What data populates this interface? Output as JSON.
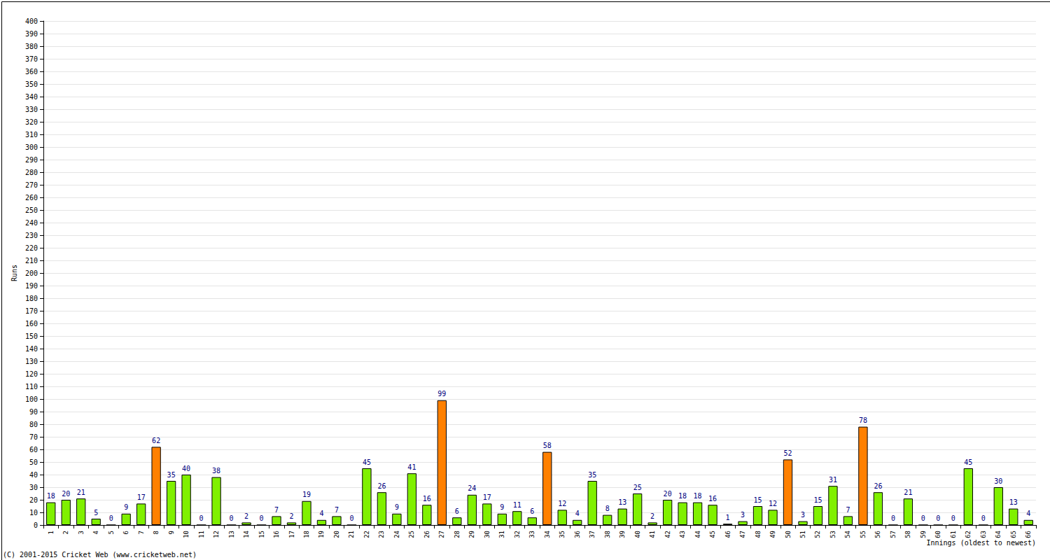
{
  "chart_data": {
    "type": "bar",
    "x_label": "Innings (oldest to newest)",
    "y_label": "Runs",
    "annotations": [
      "(C) 2001-2015 Cricket Web (www.cricketweb.net)"
    ],
    "categories": [
      "1",
      "2",
      "3",
      "4",
      "5",
      "6",
      "7",
      "8",
      "9",
      "10",
      "11",
      "12",
      "13",
      "14",
      "15",
      "16",
      "17",
      "18",
      "19",
      "20",
      "21",
      "22",
      "23",
      "24",
      "25",
      "26",
      "27",
      "28",
      "29",
      "30",
      "31",
      "32",
      "33",
      "34",
      "35",
      "36",
      "37",
      "38",
      "39",
      "40",
      "41",
      "42",
      "43",
      "44",
      "45",
      "46",
      "47",
      "48",
      "49",
      "50",
      "51",
      "52",
      "53",
      "54",
      "55",
      "56",
      "57",
      "58",
      "59",
      "60",
      "61",
      "62",
      "63",
      "64",
      "65",
      "66"
    ],
    "values": [
      18,
      20,
      21,
      5,
      0,
      9,
      17,
      62,
      35,
      40,
      0,
      38,
      0,
      2,
      0,
      7,
      2,
      19,
      4,
      7,
      0,
      45,
      26,
      9,
      41,
      16,
      99,
      6,
      24,
      17,
      9,
      11,
      6,
      58,
      12,
      4,
      35,
      8,
      13,
      25,
      2,
      20,
      18,
      18,
      16,
      1,
      3,
      15,
      12,
      52,
      3,
      15,
      31,
      7,
      78,
      26,
      0,
      21,
      0,
      0,
      0,
      45,
      0,
      30,
      13,
      4
    ],
    "colors": [
      "#80f000",
      "#80f000",
      "#80f000",
      "#80f000",
      "#80f000",
      "#80f000",
      "#80f000",
      "#ff8000",
      "#80f000",
      "#80f000",
      "#80f000",
      "#80f000",
      "#80f000",
      "#80f000",
      "#80f000",
      "#80f000",
      "#80f000",
      "#80f000",
      "#80f000",
      "#80f000",
      "#80f000",
      "#80f000",
      "#80f000",
      "#80f000",
      "#80f000",
      "#80f000",
      "#ff8000",
      "#80f000",
      "#80f000",
      "#80f000",
      "#80f000",
      "#80f000",
      "#80f000",
      "#ff8000",
      "#80f000",
      "#80f000",
      "#80f000",
      "#80f000",
      "#80f000",
      "#80f000",
      "#80f000",
      "#80f000",
      "#80f000",
      "#80f000",
      "#80f000",
      "#80f000",
      "#80f000",
      "#80f000",
      "#80f000",
      "#ff8000",
      "#80f000",
      "#80f000",
      "#80f000",
      "#80f000",
      "#ff8000",
      "#80f000",
      "#80f000",
      "#80f000",
      "#80f000",
      "#80f000",
      "#80f000",
      "#80f000",
      "#80f000",
      "#80f000",
      "#80f000",
      "#80f000"
    ],
    "ylim": [
      0,
      400
    ],
    "yticks": [
      0,
      10,
      20,
      30,
      40,
      50,
      60,
      70,
      80,
      90,
      100,
      110,
      120,
      130,
      140,
      150,
      160,
      170,
      180,
      190,
      200,
      210,
      220,
      230,
      240,
      250,
      260,
      270,
      280,
      290,
      300,
      310,
      320,
      330,
      340,
      350,
      360,
      370,
      380,
      390,
      400
    ],
    "grid": true,
    "data_labels": true
  }
}
